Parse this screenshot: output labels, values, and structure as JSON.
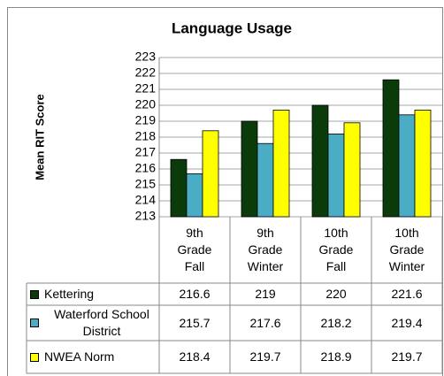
{
  "chart_data": {
    "type": "bar",
    "title": "Language Usage",
    "y_label": "Mean RIT Score",
    "categories": [
      "9th Grade Fall",
      "9th Grade Winter",
      "10th Grade Fall",
      "10th Grade Winter"
    ],
    "series": [
      {
        "name": "Kettering",
        "color": "#0b3a0b",
        "values": [
          216.6,
          219,
          220,
          221.6
        ]
      },
      {
        "name": "Waterford School District",
        "color": "#4bacc6",
        "values": [
          215.7,
          217.6,
          218.2,
          219.4
        ]
      },
      {
        "name": "NWEA Norm",
        "color": "#ffff00",
        "values": [
          218.4,
          219.7,
          218.9,
          219.7
        ]
      }
    ],
    "ylim": [
      213,
      223
    ],
    "yticks": [
      213,
      214,
      215,
      216,
      217,
      218,
      219,
      220,
      221,
      222,
      223
    ],
    "grid": true
  }
}
